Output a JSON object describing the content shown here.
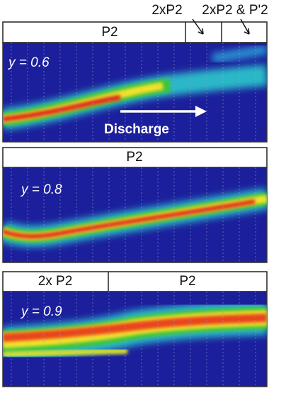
{
  "panels": [
    {
      "phases": [
        "P2"
      ],
      "annotations": [
        "2xP2",
        "2xP2 & P'2"
      ],
      "composition": "y = 0.6",
      "arrow_label": "Discharge"
    },
    {
      "phases": [
        "P2"
      ],
      "composition": "y = 0.8"
    },
    {
      "phases": [
        "2x P2",
        "P2"
      ],
      "composition": "y = 0.9"
    }
  ]
}
